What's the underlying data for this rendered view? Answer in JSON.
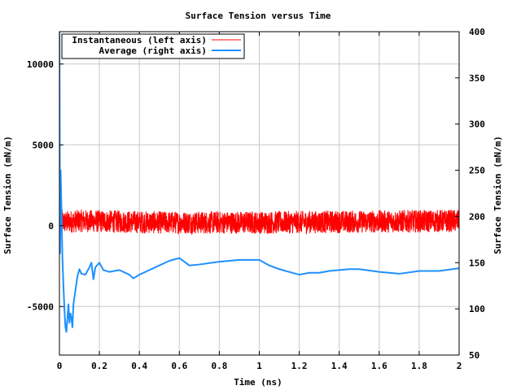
{
  "chart_data": {
    "type": "line",
    "title": "Surface Tension versus Time",
    "xlabel": "Time (ns)",
    "ylabel_left": "Surface Tension (mN/m)",
    "ylabel_right": "Surface Tension (mN/m)",
    "xlim": [
      0,
      2
    ],
    "ylim_left": [
      -8000,
      12000
    ],
    "ylim_right": [
      50,
      400
    ],
    "x_ticks": [
      0,
      0.2,
      0.4,
      0.6,
      0.8,
      1,
      1.2,
      1.4,
      1.6,
      1.8,
      2
    ],
    "x_tick_labels": [
      "0",
      "0.2",
      "0.4",
      "0.6",
      "0.8",
      "1",
      "1.2",
      "1.4",
      "1.6",
      "1.8",
      "2"
    ],
    "y_left_ticks": [
      -5000,
      0,
      5000,
      10000
    ],
    "y_left_tick_labels": [
      "-5000",
      "0",
      "5000",
      "10000"
    ],
    "y_right_ticks": [
      50,
      100,
      150,
      200,
      250,
      300,
      350,
      400
    ],
    "y_right_tick_labels": [
      "50",
      "100",
      "150",
      "200",
      "250",
      "300",
      "350",
      "400"
    ],
    "grid": true,
    "legend_position": "top-left",
    "series": [
      {
        "name": "Instantaneous (left axis)",
        "axis": "left",
        "color": "#ff0000",
        "noise_band": [
          -700,
          700
        ],
        "x": [
          0,
          0.002,
          0.004,
          0.006,
          0.01,
          0.02,
          0.05,
          0.1,
          0.5,
          1.0,
          1.5,
          2.0
        ],
        "values": [
          11500,
          -1800,
          3000,
          1200,
          400,
          200,
          250,
          300,
          200,
          200,
          250,
          300
        ]
      },
      {
        "name": "Average (right axis)",
        "axis": "right",
        "color": "#1e90ff",
        "x": [
          0,
          0.003,
          0.006,
          0.01,
          0.015,
          0.02,
          0.025,
          0.03,
          0.035,
          0.04,
          0.045,
          0.05,
          0.055,
          0.06,
          0.065,
          0.07,
          0.08,
          0.09,
          0.1,
          0.11,
          0.13,
          0.15,
          0.16,
          0.17,
          0.18,
          0.2,
          0.22,
          0.25,
          0.3,
          0.35,
          0.37,
          0.4,
          0.45,
          0.5,
          0.55,
          0.6,
          0.65,
          0.7,
          0.8,
          0.9,
          1.0,
          1.05,
          1.1,
          1.15,
          1.2,
          1.25,
          1.3,
          1.35,
          1.4,
          1.45,
          1.5,
          1.6,
          1.7,
          1.8,
          1.9,
          2.0
        ],
        "values": [
          400,
          160,
          250,
          210,
          155,
          125,
          100,
          80,
          75,
          90,
          105,
          85,
          95,
          90,
          80,
          105,
          120,
          135,
          143,
          138,
          137,
          145,
          150,
          132,
          145,
          150,
          142,
          140,
          142,
          137,
          133,
          137,
          142,
          147,
          152,
          155,
          147,
          148,
          151,
          153,
          153,
          147,
          143,
          140,
          137,
          139,
          139,
          141,
          142,
          143,
          143,
          140,
          138,
          141,
          141,
          144
        ]
      }
    ]
  }
}
